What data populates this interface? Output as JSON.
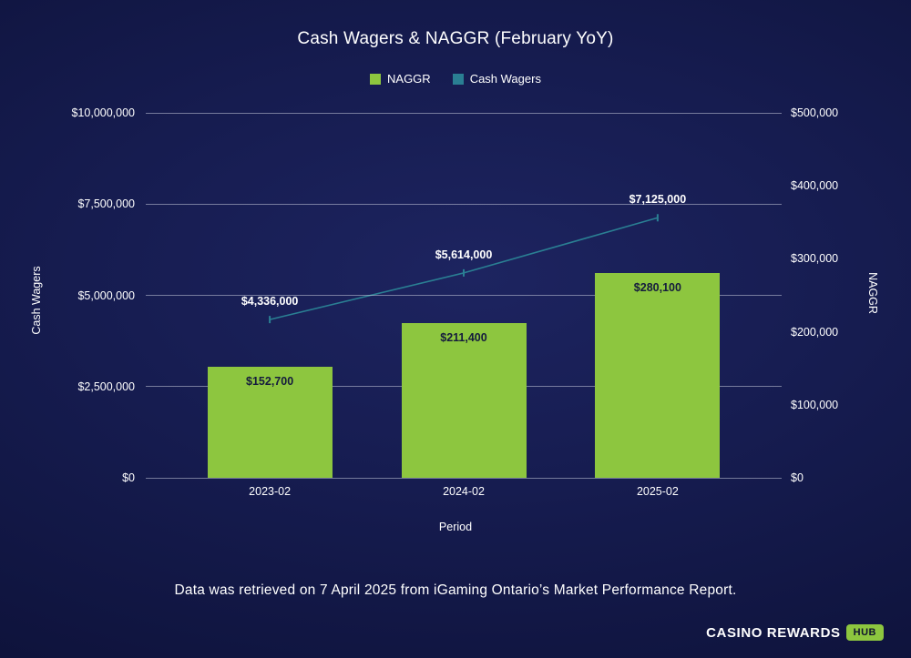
{
  "title": "Cash Wagers & NAGGR (February YoY)",
  "legend": [
    {
      "label": "NAGGR",
      "color": "#8DC63F"
    },
    {
      "label": "Cash Wagers",
      "color": "#2A7F93"
    }
  ],
  "chart_data": {
    "type": "bar+line",
    "categories": [
      "2023-02",
      "2024-02",
      "2025-02"
    ],
    "series": [
      {
        "name": "NAGGR",
        "type": "bar",
        "axis": "right",
        "color": "#8DC63F",
        "values": [
          152700,
          211400,
          280100
        ],
        "labels": [
          "$152,700",
          "$211,400",
          "$280,100"
        ]
      },
      {
        "name": "Cash Wagers",
        "type": "line",
        "axis": "left",
        "color": "#2A7F93",
        "values": [
          4336000,
          5614000,
          7125000
        ],
        "labels": [
          "$4,336,000",
          "$5,614,000",
          "$7,125,000"
        ]
      }
    ],
    "left_axis": {
      "title": "Cash Wagers",
      "max": 10000000,
      "ticks": [
        0,
        2500000,
        5000000,
        7500000,
        10000000
      ],
      "tick_labels": [
        "$0",
        "$2,500,000",
        "$5,000,000",
        "$7,500,000",
        "$10,000,000"
      ]
    },
    "right_axis": {
      "title": "NAGGR",
      "max": 500000,
      "ticks": [
        0,
        100000,
        200000,
        300000,
        400000,
        500000
      ],
      "tick_labels": [
        "$0",
        "$100,000",
        "$200,000",
        "$300,000",
        "$400,000",
        "$500,000"
      ]
    },
    "xlabel": "Period",
    "grid": true,
    "legend_position": "top-center"
  },
  "footnote": "Data was retrieved on 7 April 2025 from iGaming Ontario’s Market Performance Report.",
  "logo": {
    "text": "CASINO REWARDS",
    "badge": "HUB"
  }
}
